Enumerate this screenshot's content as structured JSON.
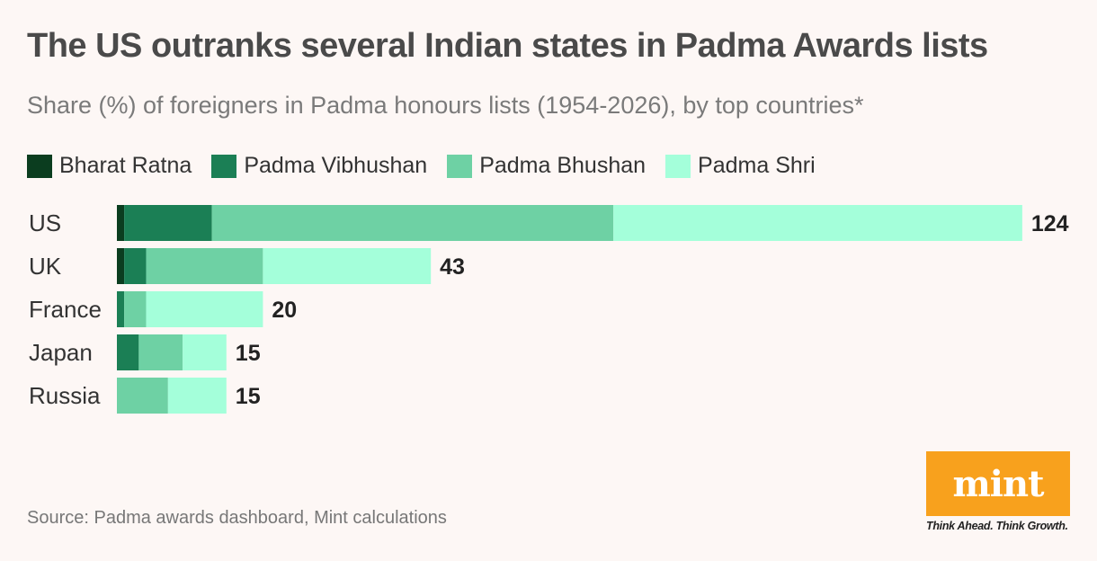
{
  "title": "The US outranks several Indian states in Padma Awards lists",
  "subtitle": "Share (%) of foreigners in Padma honours lists (1954-2026), by top countries*",
  "source": "Source: Padma awards dashboard, Mint calculations",
  "logo": {
    "text": "mint",
    "tagline": "Think Ahead. Think Growth."
  },
  "colors": {
    "background": "#fdf7f5",
    "bharat_ratna": "#0b3d1f",
    "padma_vibhushan": "#1b7f55",
    "padma_bhushan": "#6ed1a4",
    "padma_shri": "#a4ffda",
    "brand": "#f8a11d"
  },
  "legend": [
    {
      "label": "Bharat Ratna",
      "color": "#0b3d1f"
    },
    {
      "label": "Padma Vibhushan",
      "color": "#1b7f55"
    },
    {
      "label": "Padma Bhushan",
      "color": "#6ed1a4"
    },
    {
      "label": "Padma Shri",
      "color": "#a4ffda"
    }
  ],
  "chart_data": {
    "type": "bar",
    "orientation": "horizontal",
    "stacked": true,
    "categories": [
      "US",
      "UK",
      "France",
      "Japan",
      "Russia"
    ],
    "totals": [
      124,
      43,
      20,
      15,
      15
    ],
    "series": [
      {
        "name": "Bharat Ratna",
        "values": [
          1,
          1,
          0,
          0,
          0
        ]
      },
      {
        "name": "Padma Vibhushan",
        "values": [
          12,
          3,
          1,
          3,
          0
        ]
      },
      {
        "name": "Padma Bhushan",
        "values": [
          55,
          16,
          3,
          6,
          7
        ]
      },
      {
        "name": "Padma Shri",
        "values": [
          56,
          23,
          16,
          6,
          8
        ]
      }
    ],
    "grid": false,
    "legend_position": "top-left"
  }
}
